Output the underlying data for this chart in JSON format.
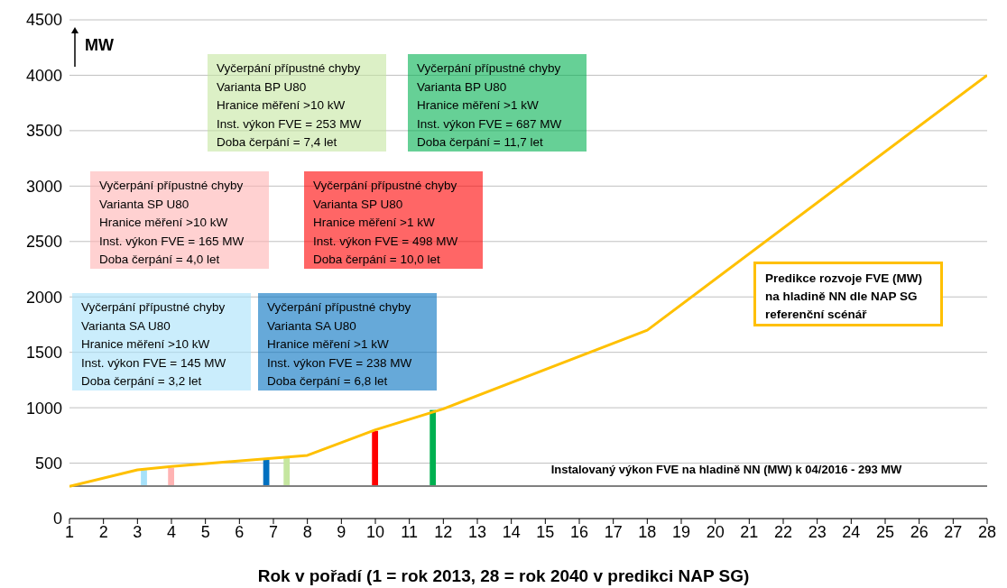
{
  "chart_data": {
    "type": "line",
    "xlabel": "Rok v pořadí (1 = rok 2013, 28 = rok 2040 v predikci NAP SG)",
    "ylabel": "MW",
    "xlim": [
      1,
      28
    ],
    "xticks": [
      1,
      2,
      3,
      4,
      5,
      6,
      7,
      8,
      9,
      10,
      11,
      12,
      13,
      14,
      15,
      16,
      17,
      18,
      19,
      20,
      21,
      22,
      23,
      24,
      25,
      26,
      27,
      28
    ],
    "ylim": [
      0,
      4500
    ],
    "yticks": [
      0,
      500,
      1000,
      1500,
      2000,
      2500,
      3000,
      3500,
      4000,
      4500
    ],
    "grid": "y",
    "legend": false,
    "marker": "none",
    "line_style": "solid",
    "series": [
      {
        "color": "#ffc000",
        "x": [
          1,
          3,
          4,
          8,
          10,
          12,
          18,
          28
        ],
        "values": [
          290,
          440,
          470,
          570,
          800,
          990,
          1700,
          4000
        ]
      },
      {
        "type": "bar",
        "x": [
          3.2,
          4.0,
          6.8,
          7.4,
          10.0,
          11.7
        ],
        "base": [
          293,
          293,
          293,
          293,
          293,
          293
        ],
        "values": [
          145,
          165,
          238,
          253,
          498,
          687
        ],
        "colors": [
          "#a6e1fa",
          "#ffb3b3",
          "#0070c0",
          "#c5e6a0",
          "#ff0000",
          "#00b050"
        ]
      }
    ],
    "ref_lines": [
      {
        "axis": "y",
        "value": 293,
        "label": "Instalovaný výkon FVE na hladině NN (MW) k 04/2016 - 293 MW",
        "color": "#808080"
      }
    ],
    "annotations": [
      "Vyčerpání přípustné chyby\nVarianta SA U80\nHranice měření >10 kW\nInst. výkon FVE = 145 MW\nDoba čerpání = 3,2 let",
      "Vyčerpání přípustné chyby\nVarianta SP U80\nHranice měření >10 kW\nInst. výkon FVE = 165 MW\nDoba čerpání = 4,0 let",
      "Vyčerpání přípustné chyby\nVarianta SA U80\nHranice měření >1 kW\nInst. výkon FVE = 238 MW\nDoba čerpání = 6,8 let",
      "Vyčerpání přípustné chyby\nVarianta BP U80\nHranice měření >10 kW\nInst. výkon FVE = 253 MW\nDoba čerpání = 7,4 let",
      "Vyčerpání přípustné chyby\nVarianta SP U80\nHranice měření >1 kW\nInst. výkon FVE = 498 MW\nDoba čerpání = 10,0 let",
      "Vyčerpání přípustné chyby\nVarianta BP U80\nHranice měření >1 kW\nInst. výkon FVE = 687 MW\nDoba čerpání = 11,7 let",
      "Predikce rozvoje FVE (MW)\nna hladině NN dle NAP SG\nreferenční scénář"
    ]
  }
}
